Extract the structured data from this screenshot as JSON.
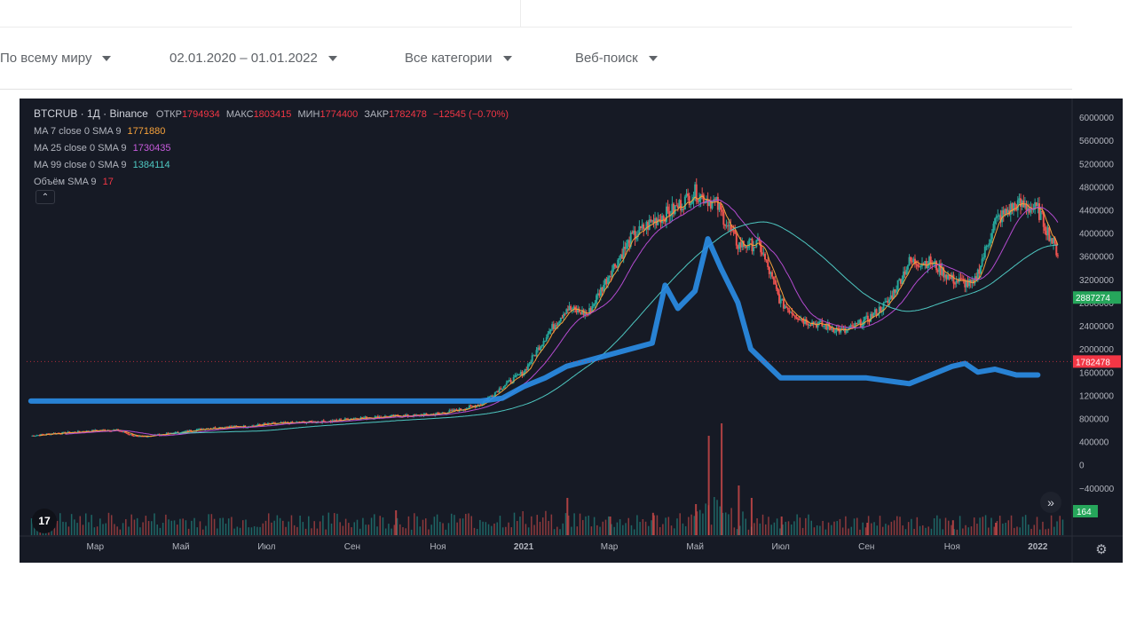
{
  "filters": [
    {
      "label": "По всему миру"
    },
    {
      "label": "02.01.2020 – 01.01.2022"
    },
    {
      "label": "Все категории"
    },
    {
      "label": "Веб-поиск"
    }
  ],
  "legend": {
    "symbol": "BTCRUB · 1Д · Binance",
    "open_label": "ОТКР",
    "open": "1794934",
    "high_label": "МАКС",
    "high": "1803415",
    "low_label": "МИН",
    "low": "1774400",
    "close_label": "ЗАКР",
    "close": "1782478",
    "change": "−12545 (−0.70%)",
    "ma7_label": "MA 7 close 0 SMA 9",
    "ma7_value": "1771880",
    "ma25_label": "MA 25 close 0 SMA 9",
    "ma25_value": "1730435",
    "ma99_label": "MA 99 close 0 SMA 9",
    "ma99_value": "1384114",
    "volume_label": "Объём SMA 9",
    "volume_value": "17"
  },
  "colors": {
    "background": "#161a25",
    "ma7": "#f7a23b",
    "ma25": "#b44bd0",
    "ma99": "#4ec7c1",
    "up": "#26a69a",
    "down": "#ef5350",
    "interest": "#2a8ee8",
    "price_label": "#f23645",
    "ma99_tag": "#26a65b",
    "volume_tag": "#26a65b"
  },
  "icons": {
    "collapse": "chevron-up-icon",
    "logo": "tradingview-logo-icon",
    "scroll": "double-chevron-right-icon",
    "settings": "gear-icon"
  },
  "chart_data": {
    "type": "candlestick",
    "title": "BTCRUB · 1Д · Binance",
    "y_axis_ticks": [
      6000000,
      5600000,
      5200000,
      4800000,
      4400000,
      4000000,
      3600000,
      3200000,
      2800000,
      2400000,
      2000000,
      1600000,
      1200000,
      800000,
      400000,
      0,
      -400000
    ],
    "ylim": [
      -1000000,
      6200000
    ],
    "x_axis_ticks": [
      "Мар",
      "Май",
      "Июл",
      "Сен",
      "Ноя",
      "2021",
      "Мар",
      "Май",
      "Июл",
      "Сен",
      "Ноя",
      "2022"
    ],
    "x_tick_months": [
      2,
      4,
      6,
      8,
      10,
      12,
      14,
      16,
      18,
      20,
      22,
      24
    ],
    "xlim_months": [
      0.4,
      24.8
    ],
    "series": [
      {
        "name": "Close",
        "x_months": [
          0.5,
          1,
          1.5,
          2,
          2.5,
          3,
          3.5,
          4,
          4.5,
          5,
          5.5,
          6,
          6.5,
          7,
          7.5,
          8,
          8.5,
          9,
          9.5,
          10,
          10.5,
          11,
          11.5,
          12,
          12.5,
          13,
          13.5,
          14,
          14.5,
          15,
          15.5,
          16,
          16.5,
          17,
          17.5,
          18,
          18.5,
          19,
          19.5,
          20,
          20.5,
          21,
          21.5,
          22,
          22.5,
          23,
          23.5,
          24,
          24.5
        ],
        "values": [
          500000,
          540000,
          560000,
          590000,
          600000,
          480000,
          520000,
          560000,
          620000,
          650000,
          660000,
          700000,
          720000,
          740000,
          750000,
          800000,
          820000,
          840000,
          850000,
          880000,
          950000,
          1050000,
          1350000,
          1600000,
          2200000,
          2700000,
          2600000,
          3300000,
          3900000,
          4200000,
          4400000,
          4700000,
          4500000,
          3800000,
          3800000,
          2800000,
          2500000,
          2400000,
          2300000,
          2500000,
          2800000,
          3500000,
          3500000,
          3200000,
          3100000,
          4200000,
          4500000,
          4400000,
          3600000
        ]
      },
      {
        "name": "MA 7",
        "last_value": 1771880
      },
      {
        "name": "MA 25",
        "last_value": 1730435
      },
      {
        "name": "MA 99",
        "last_value": 1384114
      }
    ],
    "volume": {
      "name": "Объём",
      "x_months": [
        9,
        13,
        14,
        15,
        16,
        16.3,
        16.6,
        17,
        17.3,
        18,
        20,
        22,
        23
      ],
      "values": [
        2.0,
        3.0,
        1.5,
        1.8,
        2.5,
        8.0,
        9.0,
        4.0,
        3.0,
        1.5,
        1.0,
        1.2,
        1.0
      ],
      "last_value": 164
    },
    "last_price_label": 1782478,
    "ma99_tag_value": 2887274,
    "interest_overlay": {
      "x_months": [
        0.5,
        1,
        2,
        3,
        4,
        5,
        6,
        7,
        8,
        9,
        10,
        11,
        11.5,
        12,
        12.5,
        13,
        14,
        15,
        15.3,
        15.6,
        16,
        16.3,
        16.6,
        17,
        17.3,
        18,
        19,
        20,
        21,
        22,
        22.3,
        22.6,
        23,
        23.5,
        24
      ],
      "values": [
        1100000,
        1100000,
        1100000,
        1100000,
        1100000,
        1100000,
        1100000,
        1100000,
        1100000,
        1100000,
        1100000,
        1100000,
        1150000,
        1350000,
        1500000,
        1700000,
        1900000,
        2100000,
        3100000,
        2700000,
        3000000,
        3900000,
        3400000,
        2800000,
        2000000,
        1500000,
        1500000,
        1500000,
        1400000,
        1700000,
        1750000,
        1600000,
        1650000,
        1550000,
        1550000
      ]
    },
    "grid": false,
    "legend_position": "top-left"
  }
}
